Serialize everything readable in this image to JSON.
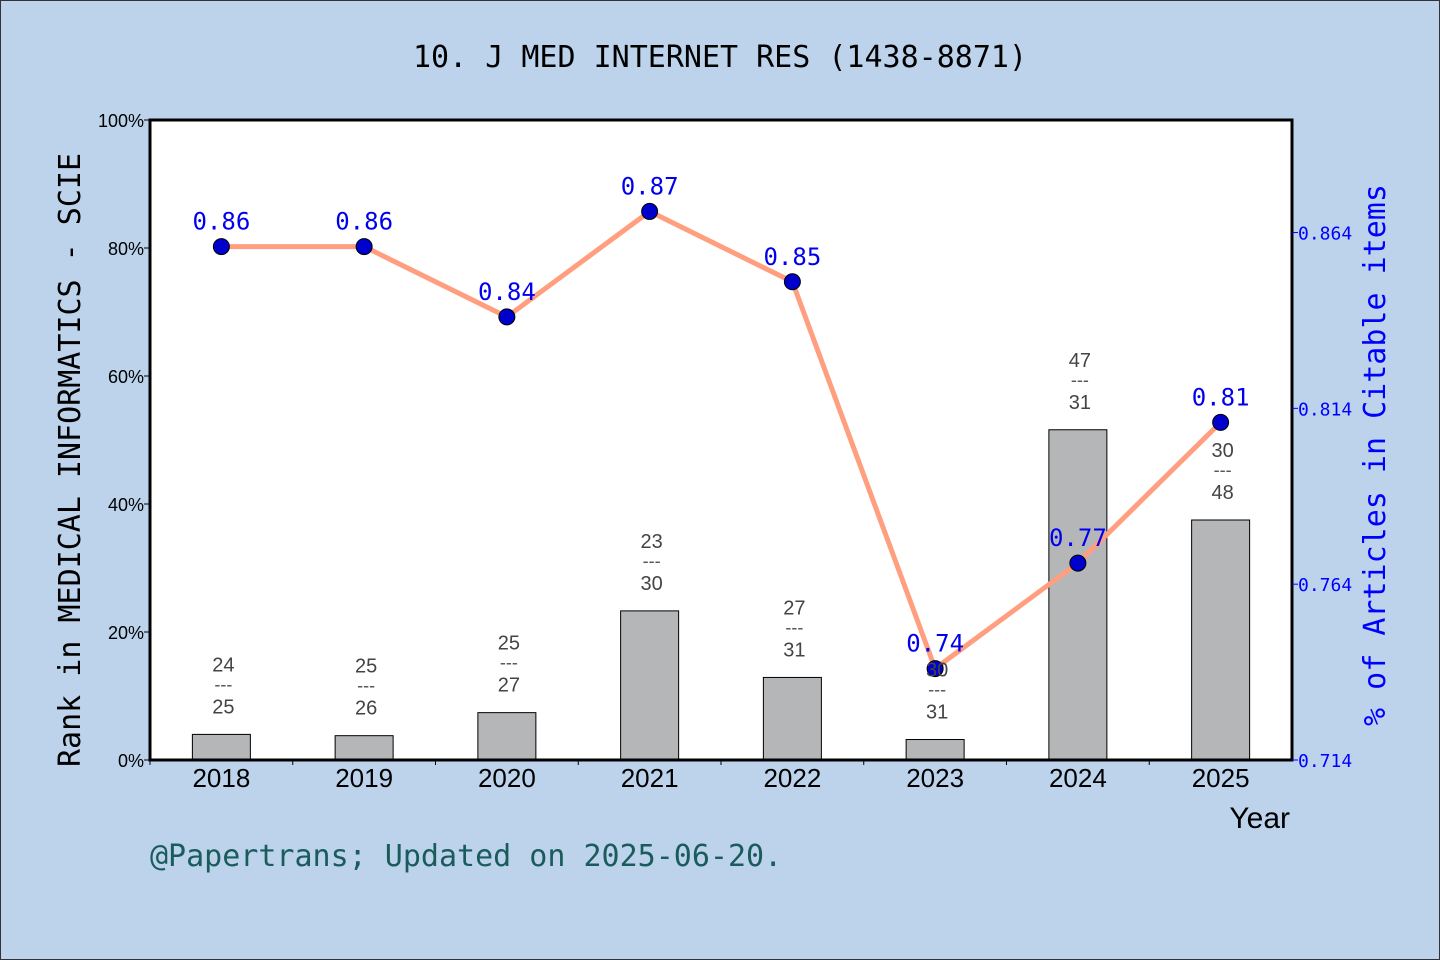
{
  "chart_data": {
    "type": "bar+line",
    "title": "10. J MED INTERNET RES (1438-8871)",
    "xlabel": "Year",
    "ylabel_left": "Rank in MEDICAL INFORMATICS - SCIE",
    "ylabel_right": "% of Articles in Citable items",
    "categories": [
      "2018",
      "2019",
      "2020",
      "2021",
      "2022",
      "2023",
      "2024",
      "2025"
    ],
    "left_axis": {
      "ylim": [
        0,
        100
      ],
      "ticks": [
        "0%",
        "20%",
        "40%",
        "60%",
        "80%",
        "100%"
      ],
      "tick_values": [
        0,
        20,
        40,
        60,
        80,
        100
      ]
    },
    "right_axis": {
      "ylim": [
        0.714,
        0.896
      ],
      "ticks": [
        "0.714",
        "0.764",
        "0.814",
        "0.864"
      ],
      "tick_values": [
        0.714,
        0.764,
        0.814,
        0.864
      ]
    },
    "bars": {
      "values": [
        4.0,
        3.8,
        7.4,
        23.3,
        12.9,
        3.2,
        51.6,
        37.5
      ],
      "label_top": [
        "24",
        "25",
        "25",
        "23",
        "27",
        "30",
        "47",
        "30"
      ],
      "label_bottom": [
        "25",
        "26",
        "27",
        "30",
        "31",
        "31",
        "31",
        "48"
      ],
      "label_sep": "---",
      "color": "#b8b9bb"
    },
    "line": {
      "values": [
        0.86,
        0.86,
        0.84,
        0.87,
        0.85,
        0.74,
        0.77,
        0.81
      ],
      "labels": [
        "0.86",
        "0.86",
        "0.84",
        "0.87",
        "0.85",
        "0.74",
        "0.77",
        "0.81"
      ],
      "line_color": "#ff9f7f",
      "marker_color": "#0000cc"
    },
    "grid": false,
    "footer": "@Papertrans; Updated on 2025-06-20."
  }
}
